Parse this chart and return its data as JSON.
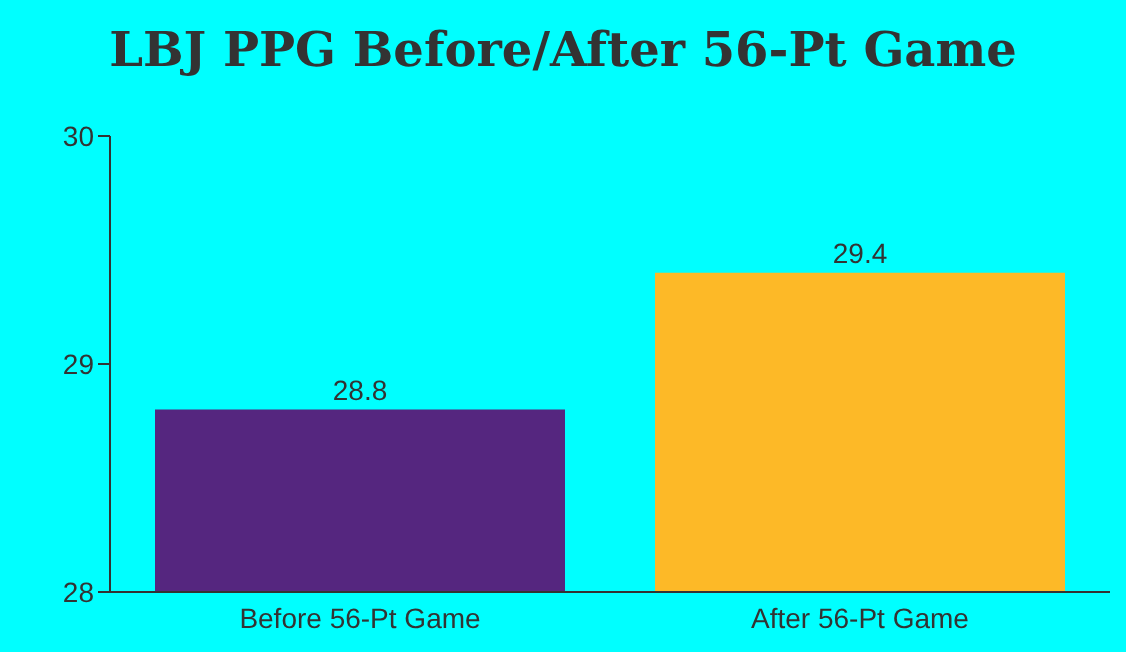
{
  "chart_data": {
    "type": "bar",
    "title": "LBJ PPG Before/After 56-Pt Game",
    "categories": [
      "Before 56-Pt Game",
      "After 56-Pt Game"
    ],
    "values": [
      28.8,
      29.4
    ],
    "colors": [
      "#55267f",
      "#fdb927"
    ],
    "ylim": [
      28,
      30
    ],
    "yticks": [
      28,
      29,
      30
    ],
    "grid": false,
    "data_labels": true
  }
}
